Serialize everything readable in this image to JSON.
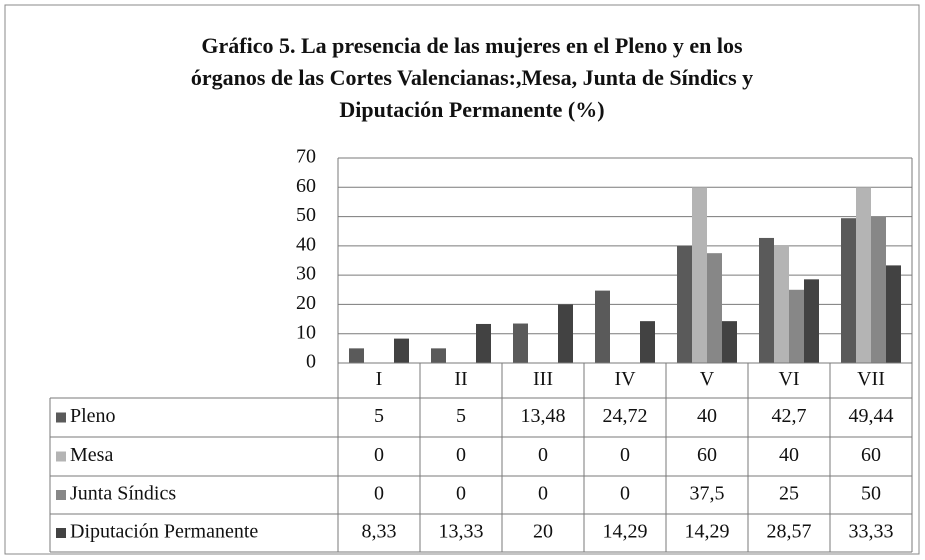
{
  "chart_data": {
    "type": "bar",
    "title": [
      "Gráfico 5. La presencia de las mujeres en el Pleno y en los",
      "órganos de las Cortes Valencianas:,Mesa, Junta de Síndics y",
      "Diputación Permanente (%)"
    ],
    "categories": [
      "I",
      "II",
      "III",
      "IV",
      "V",
      "VI",
      "VII"
    ],
    "series": [
      {
        "name": "Pleno",
        "color": "#5a5a5a",
        "values": [
          5,
          5,
          13.48,
          24.72,
          40,
          42.7,
          49.44
        ],
        "value_labels": [
          "5",
          "5",
          "13,48",
          "24,72",
          "40",
          "42,7",
          "49,44"
        ]
      },
      {
        "name": "Mesa",
        "color": "#b4b4b4",
        "values": [
          0,
          0,
          0,
          0,
          60,
          40,
          60
        ]
      },
      {
        "name": "Junta Síndics",
        "color": "#878787",
        "values": [
          0,
          0,
          0,
          0,
          37.5,
          25,
          50
        ],
        "value_labels": [
          "0",
          "0",
          "0",
          "0",
          "37,5",
          "25",
          "50"
        ]
      },
      {
        "name": "Diputación Permanente",
        "color": "#424242",
        "values": [
          8.33,
          13.33,
          20,
          14.29,
          14.29,
          28.57,
          33.33
        ],
        "value_labels": [
          "8,33",
          "13,33",
          "20",
          "14,29",
          "14,29",
          "28,57",
          "33,33"
        ]
      }
    ],
    "ylim": [
      0,
      70
    ],
    "yticks": [
      0,
      10,
      20,
      30,
      40,
      50,
      60,
      70
    ],
    "grid": true
  }
}
